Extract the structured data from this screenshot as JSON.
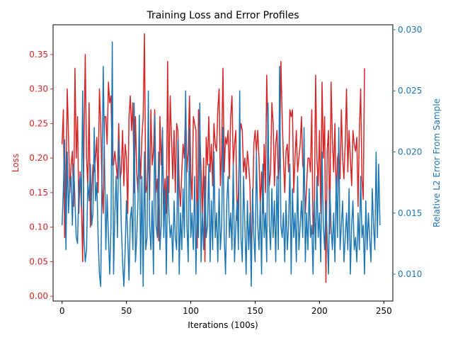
{
  "colors": {
    "loss": "#d62728",
    "error": "#1f77b4",
    "axis": "#000000",
    "background": "#ffffff"
  },
  "chart_data": {
    "type": "line",
    "title": "Training Loss and Error Profiles",
    "xlabel": "Iterations (100s)",
    "xlim": [
      -7,
      257
    ],
    "xticks": [
      0,
      50,
      100,
      150,
      200,
      250
    ],
    "x_start": 0,
    "x_step": 1,
    "grid": false,
    "legend": "none",
    "axes": [
      {
        "side": "left",
        "label": "Loss",
        "color": "#d62728",
        "ylim": [
          -0.007,
          0.393
        ],
        "ticks": [
          0.0,
          0.05,
          0.1,
          0.15,
          0.2,
          0.25,
          0.3,
          0.35
        ],
        "tick_labels": [
          "0.00",
          "0.05",
          "0.10",
          "0.15",
          "0.20",
          "0.25",
          "0.30",
          "0.35"
        ]
      },
      {
        "side": "right",
        "label": "Relative L2 Error From Sample",
        "color": "#1f77b4",
        "ylim": [
          0.0078,
          0.0304
        ],
        "ticks": [
          0.01,
          0.015,
          0.02,
          0.025,
          0.03
        ],
        "tick_labels": [
          "0.010",
          "0.015",
          "0.020",
          "0.025",
          "0.030"
        ]
      }
    ],
    "series": [
      {
        "axis": "left",
        "color": "#d62728",
        "values": [
          0.22,
          0.27,
          0.085,
          0.16,
          0.3,
          0.23,
          0.15,
          0.19,
          0.21,
          0.13,
          0.33,
          0.2,
          0.26,
          0.12,
          0.18,
          0.14,
          0.05,
          0.22,
          0.35,
          0.2,
          0.16,
          0.28,
          0.1,
          0.15,
          0.19,
          0.18,
          0.2,
          0.23,
          0.15,
          0.3,
          0.25,
          0.16,
          0.12,
          0.26,
          0.26,
          0.22,
          0.31,
          0.28,
          0.29,
          0.19,
          0.19,
          0.21,
          0.19,
          0.17,
          0.25,
          0.17,
          0.18,
          0.24,
          0.16,
          0.22,
          0.2,
          0.12,
          0.26,
          0.29,
          0.24,
          0.28,
          0.15,
          0.26,
          0.18,
          0.15,
          0.22,
          0.17,
          0.23,
          0.26,
          0.38,
          0.15,
          0.16,
          0.21,
          0.14,
          0.27,
          0.19,
          0.21,
          0.27,
          0.15,
          0.17,
          0.08,
          0.26,
          0.19,
          0.24,
          0.13,
          0.17,
          0.12,
          0.34,
          0.15,
          0.29,
          0.23,
          0.17,
          0.24,
          0.15,
          0.25,
          0.24,
          0.16,
          0.13,
          0.18,
          0.22,
          0.2,
          0.28,
          0.18,
          0.21,
          0.29,
          0.18,
          0.14,
          0.26,
          0.25,
          0.24,
          0.07,
          0.27,
          0.24,
          0.18,
          0.12,
          0.2,
          0.05,
          0.23,
          0.19,
          0.26,
          0.18,
          0.22,
          0.16,
          0.25,
          0.22,
          0.21,
          0.27,
          0.3,
          0.16,
          0.21,
          0.33,
          0.18,
          0.23,
          0.22,
          0.24,
          0.17,
          0.26,
          0.29,
          0.19,
          0.22,
          0.24,
          0.11,
          0.15,
          0.23,
          0.25,
          0.24,
          0.18,
          0.2,
          0.17,
          0.21,
          0.19,
          0.16,
          0.06,
          0.12,
          0.22,
          0.24,
          0.21,
          0.24,
          0.2,
          0.13,
          0.18,
          0.12,
          0.22,
          0.15,
          0.32,
          0.23,
          0.16,
          0.18,
          0.28,
          0.25,
          0.16,
          0.22,
          0.24,
          0.17,
          0.19,
          0.34,
          0.26,
          0.2,
          0.15,
          0.21,
          0.22,
          0.18,
          0.27,
          0.26,
          0.27,
          0.15,
          0.2,
          0.24,
          0.18,
          0.2,
          0.22,
          0.26,
          0.19,
          0.18,
          0.12,
          0.16,
          0.2,
          0.2,
          0.18,
          0.27,
          0.09,
          0.13,
          0.32,
          0.2,
          0.16,
          0.24,
          0.12,
          0.31,
          0.2,
          0.26,
          0.02,
          0.21,
          0.24,
          0.09,
          0.31,
          0.23,
          0.18,
          0.25,
          0.14,
          0.2,
          0.21,
          0.17,
          0.27,
          0.2,
          0.17,
          0.22,
          0.3,
          0.18,
          0.24,
          0.2,
          0.16,
          0.24,
          0.22,
          0.21,
          0.23,
          0.13,
          0.24,
          0.3,
          0.17,
          0.14,
          0.33
        ]
      },
      {
        "axis": "right",
        "color": "#1f77b4",
        "values": [
          0.014,
          0.017,
          0.021,
          0.012,
          0.02,
          0.015,
          0.0175,
          0.018,
          0.014,
          0.019,
          0.016,
          0.013,
          0.0125,
          0.017,
          0.018,
          0.0155,
          0.025,
          0.013,
          0.011,
          0.012,
          0.0175,
          0.016,
          0.019,
          0.014,
          0.015,
          0.022,
          0.016,
          0.0175,
          0.013,
          0.01,
          0.009,
          0.018,
          0.027,
          0.019,
          0.012,
          0.0165,
          0.013,
          0.01,
          0.014,
          0.029,
          0.01,
          0.015,
          0.018,
          0.013,
          0.021,
          0.019,
          0.014,
          0.011,
          0.009,
          0.012,
          0.016,
          0.013,
          0.0095,
          0.0145,
          0.0155,
          0.012,
          0.024,
          0.011,
          0.013,
          0.016,
          0.023,
          0.01,
          0.018,
          0.009,
          0.02,
          0.012,
          0.013,
          0.025,
          0.014,
          0.012,
          0.016,
          0.01,
          0.023,
          0.014,
          0.013,
          0.02,
          0.012,
          0.014,
          0.022,
          0.013,
          0.017,
          0.01,
          0.018,
          0.015,
          0.013,
          0.014,
          0.011,
          0.016,
          0.013,
          0.012,
          0.021,
          0.01,
          0.015,
          0.012,
          0.017,
          0.013,
          0.025,
          0.014,
          0.011,
          0.022,
          0.013,
          0.015,
          0.012,
          0.018,
          0.01,
          0.016,
          0.013,
          0.024,
          0.011,
          0.015,
          0.012,
          0.018,
          0.013,
          0.014,
          0.019,
          0.011,
          0.016,
          0.012,
          0.02,
          0.013,
          0.015,
          0.011,
          0.017,
          0.012,
          0.014,
          0.022,
          0.013,
          0.01,
          0.016,
          0.018,
          0.013,
          0.015,
          0.012,
          0.019,
          0.011,
          0.014,
          0.016,
          0.012,
          0.025,
          0.013,
          0.011,
          0.018,
          0.014,
          0.01,
          0.016,
          0.012,
          0.015,
          0.009,
          0.017,
          0.013,
          0.011,
          0.02,
          0.014,
          0.012,
          0.016,
          0.01,
          0.019,
          0.013,
          0.015,
          0.011,
          0.024,
          0.014,
          0.012,
          0.017,
          0.013,
          0.016,
          0.011,
          0.018,
          0.012,
          0.027,
          0.014,
          0.013,
          0.015,
          0.011,
          0.016,
          0.012,
          0.014,
          0.019,
          0.01,
          0.017,
          0.013,
          0.015,
          0.011,
          0.018,
          0.012,
          0.014,
          0.016,
          0.013,
          0.022,
          0.011,
          0.015,
          0.012,
          0.017,
          0.013,
          0.014,
          0.01,
          0.016,
          0.012,
          0.018,
          0.013,
          0.015,
          0.011,
          0.02,
          0.014,
          0.012,
          0.016,
          0.013,
          0.01,
          0.017,
          0.014,
          0.012,
          0.015,
          0.011,
          0.018,
          0.013,
          0.022,
          0.012,
          0.014,
          0.016,
          0.011,
          0.013,
          0.015,
          0.012,
          0.017,
          0.01,
          0.014,
          0.016,
          0.012,
          0.013,
          0.011,
          0.015,
          0.012,
          0.018,
          0.013,
          0.014,
          0.01,
          0.016,
          0.012,
          0.015,
          0.013,
          0.011,
          0.017,
          0.014,
          0.012,
          0.02,
          0.013,
          0.019,
          0.014
        ]
      }
    ]
  }
}
